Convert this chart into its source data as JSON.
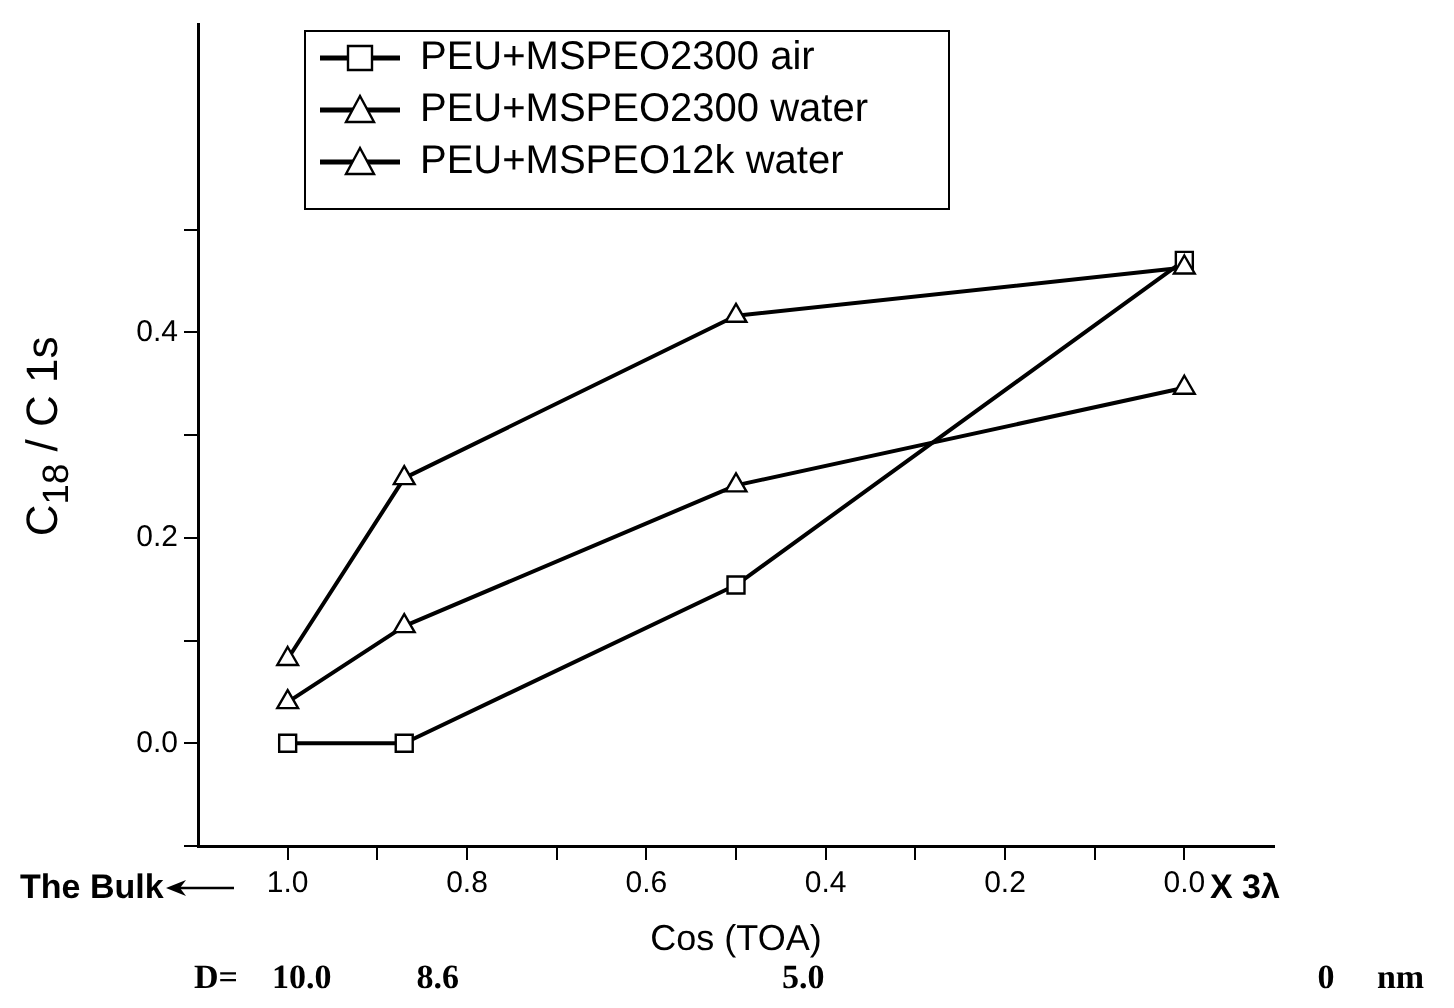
{
  "chart_data": {
    "type": "line",
    "xlabel": "Cos (TOA)",
    "ylabel": "C$_{18}$ / C 1s",
    "x": [
      1.0,
      0.87,
      0.5,
      0.0
    ],
    "series": [
      {
        "name": "PEU+MSPEO2300 air",
        "color": "#000000",
        "marker": "square",
        "values": [
          0.0,
          0.0,
          0.154,
          0.47
        ]
      },
      {
        "name": "PEU+MSPEO2300 water",
        "color": "#000000",
        "marker": "triangle",
        "values": [
          0.04,
          0.114,
          0.251,
          0.346
        ]
      },
      {
        "name": "PEU+MSPEO12k water",
        "color": "#000000",
        "marker": "triangle",
        "values": [
          0.082,
          0.258,
          0.416,
          0.463
        ]
      }
    ],
    "xlim": [
      1.1,
      -0.1
    ],
    "xticks": [
      {
        "value": 1.0,
        "label": "1.0"
      },
      {
        "value": 0.9,
        "label": null
      },
      {
        "value": 0.8,
        "label": "0.8"
      },
      {
        "value": 0.7,
        "label": null
      },
      {
        "value": 0.6,
        "label": "0.6"
      },
      {
        "value": 0.5,
        "label": null
      },
      {
        "value": 0.4,
        "label": "0.4"
      },
      {
        "value": 0.3,
        "label": null
      },
      {
        "value": 0.2,
        "label": "0.2"
      },
      {
        "value": 0.1,
        "label": null
      },
      {
        "value": 0.0,
        "label": "0.0"
      }
    ],
    "ylim": [
      -0.1,
      0.7
    ],
    "yticks": [
      {
        "value": -0.1,
        "label": null
      },
      {
        "value": 0.0,
        "label": "0.0"
      },
      {
        "value": 0.1,
        "label": null
      },
      {
        "value": 0.2,
        "label": "0.2"
      },
      {
        "value": 0.3,
        "label": null
      },
      {
        "value": 0.4,
        "label": "0.4"
      },
      {
        "value": 0.5,
        "label": null
      }
    ],
    "annotations": [
      "The Bulk",
      "X 3λ",
      "D=    10.0          8.6                                      5.0                                                          0     nm"
    ],
    "grid": false,
    "legend": "top left",
    "line_style": "solid"
  }
}
